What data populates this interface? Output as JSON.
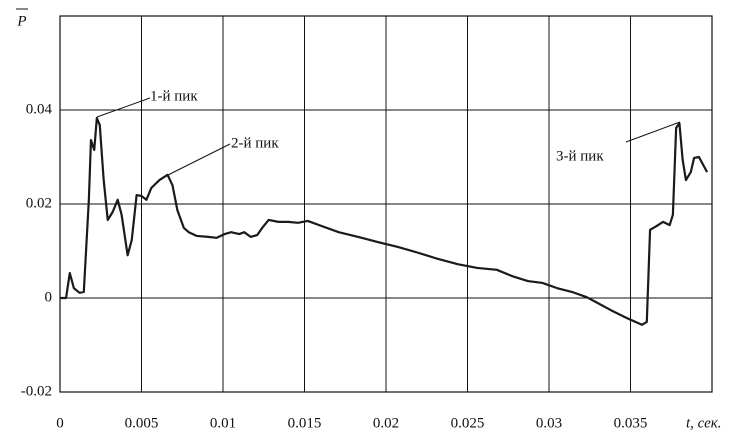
{
  "chart_data": {
    "type": "line",
    "y_label": "P",
    "x_label": "t, сек.",
    "x": [
      0,
      0.00037,
      0.0006,
      0.00085,
      0.0012,
      0.00146,
      0.00177,
      0.0019,
      0.0021,
      0.00226,
      0.00244,
      0.00268,
      0.00293,
      0.00323,
      0.00354,
      0.00378,
      0.00415,
      0.0044,
      0.0047,
      0.005,
      0.0053,
      0.0056,
      0.0061,
      0.0066,
      0.0069,
      0.0072,
      0.0076,
      0.0079,
      0.0084,
      0.0091,
      0.0096,
      0.0101,
      0.0105,
      0.011,
      0.0113,
      0.0117,
      0.0121,
      0.0124,
      0.0128,
      0.0134,
      0.014,
      0.0146,
      0.0152,
      0.0159,
      0.0171,
      0.0183,
      0.0195,
      0.0207,
      0.022,
      0.0232,
      0.0244,
      0.0256,
      0.0268,
      0.0277,
      0.0287,
      0.0296,
      0.0305,
      0.0314,
      0.0323,
      0.0329,
      0.0338,
      0.0348,
      0.0357,
      0.036,
      0.0362,
      0.0366,
      0.037,
      0.0374,
      0.0376,
      0.0378,
      0.038,
      0.0382,
      0.0384,
      0.0387,
      0.0389,
      0.0392,
      0.0394,
      0.0397
    ],
    "series": [
      {
        "name": "P",
        "color": "#1a1a1a",
        "values": [
          0,
          0,
          0.0053,
          0.0021,
          0.0011,
          0.0013,
          0.0209,
          0.0336,
          0.0315,
          0.0383,
          0.0368,
          0.0251,
          0.0166,
          0.0183,
          0.0209,
          0.0177,
          0.0091,
          0.0123,
          0.0219,
          0.0217,
          0.0209,
          0.0234,
          0.0251,
          0.0262,
          0.024,
          0.0187,
          0.0149,
          0.014,
          0.0132,
          0.013,
          0.0128,
          0.0136,
          0.014,
          0.0136,
          0.014,
          0.013,
          0.0134,
          0.0149,
          0.0166,
          0.0162,
          0.0162,
          0.016,
          0.0164,
          0.0155,
          0.014,
          0.013,
          0.0119,
          0.0109,
          0.0096,
          0.0083,
          0.0072,
          0.0064,
          0.006,
          0.0047,
          0.0036,
          0.0032,
          0.0021,
          0.0013,
          0.0002,
          -0.0009,
          -0.0026,
          -0.0043,
          -0.0057,
          -0.0051,
          0.0145,
          0.0153,
          0.0162,
          0.0155,
          0.0177,
          0.0362,
          0.0372,
          0.0294,
          0.0251,
          0.0268,
          0.0298,
          0.03,
          0.0287,
          0.0268
        ]
      }
    ],
    "xlim": [
      0,
      0.04
    ],
    "xticks": [
      0,
      0.005,
      0.01,
      0.015,
      0.02,
      0.025,
      0.03,
      0.035
    ],
    "ylim": [
      -0.02,
      0.06
    ],
    "yticks": [
      -0.02,
      0,
      0.02,
      0.04
    ],
    "grid": true,
    "annotations": [
      "1-й пик",
      "2-й пик",
      "3-й пик"
    ]
  }
}
